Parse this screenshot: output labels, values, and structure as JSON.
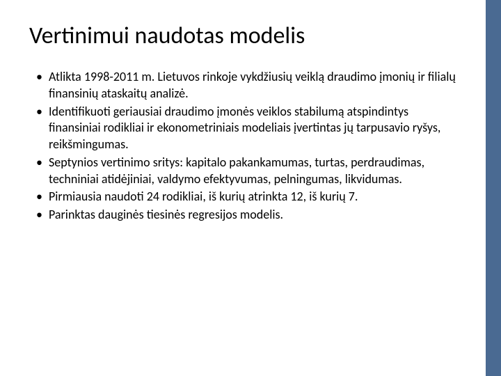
{
  "slide": {
    "title": "Vertinimui naudotas modelis",
    "title_fontsize": 34,
    "title_color": "#000000",
    "body_fontsize": 18,
    "body_color": "#000000",
    "background_color": "#ffffff",
    "accent_bar_color": "#4a6a92",
    "accent_bar_width": 22,
    "bullets": [
      "Atlikta 1998-2011 m. Lietuvos rinkoje vykdžiusių veiklą draudimo įmonių ir filialų finansinių ataskaitų analizė.",
      "Identifikuoti geriausiai draudimo įmonės veiklos stabilumą atspindintys finansiniai rodikliai ir ekonometriniais modeliais įvertintas jų tarpusavio ryšys, reikšmingumas.",
      "Septynios vertinimo sritys: kapitalo pakankamumas, turtas, perdraudimas, techniniai atidėjiniai, valdymo efektyvumas, pelningumas, likvidumas.",
      "Pirmiausia naudoti 24 rodikliai, iš kurių atrinkta 12, iš kurių 7.",
      "Parinktas dauginės tiesinės regresijos modelis."
    ]
  }
}
